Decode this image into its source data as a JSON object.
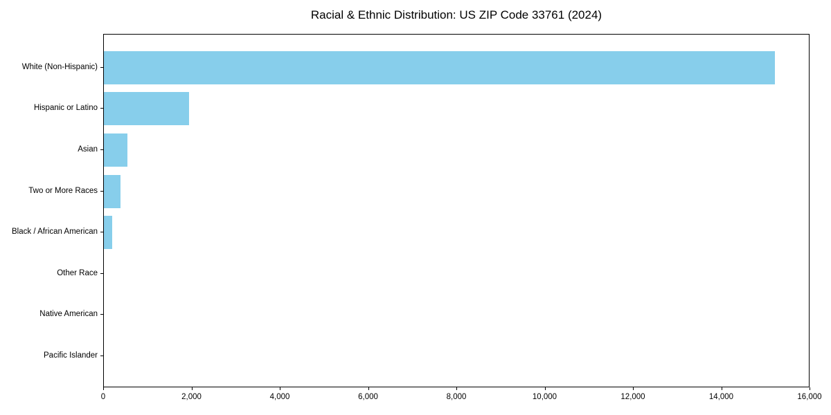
{
  "title": "Racial & Ethnic Distribution: US ZIP Code 33761 (2024)",
  "chart_data": {
    "type": "bar",
    "orientation": "horizontal",
    "title": "Racial & Ethnic Distribution: US ZIP Code 33761 (2024)",
    "xlabel": "",
    "ylabel": "",
    "categories": [
      "White (Non-Hispanic)",
      "Hispanic or Latino",
      "Asian",
      "Two or More Races",
      "Black / African American",
      "Other Race",
      "Native American",
      "Pacific Islander"
    ],
    "values": [
      15200,
      1930,
      530,
      375,
      190,
      0,
      0,
      0
    ],
    "xlim": [
      0,
      16000
    ],
    "xticks": [
      0,
      2000,
      4000,
      6000,
      8000,
      10000,
      12000,
      14000,
      16000
    ],
    "xtick_labels": [
      "0",
      "2,000",
      "4,000",
      "6,000",
      "8,000",
      "10,000",
      "12,000",
      "14,000",
      "16,000"
    ],
    "grid": false,
    "legend": null,
    "bar_color": "#87CEEB",
    "spine_color": "#000000",
    "text_color": "#000000",
    "background_color": "#FFFFFF"
  }
}
